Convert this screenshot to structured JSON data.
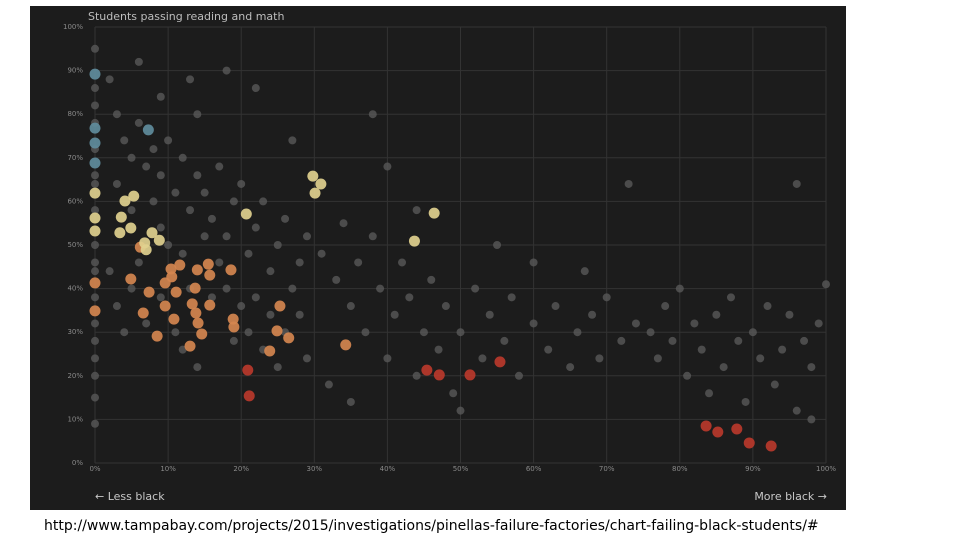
{
  "chart_data": {
    "type": "scatter",
    "title": "Students passing reading and math",
    "x_label_left": "← Less black",
    "x_label_right": "More black →",
    "xlim": [
      0,
      100
    ],
    "ylim": [
      0,
      100
    ],
    "grid": true,
    "xticks": [
      {
        "value": 0,
        "label": "0%"
      },
      {
        "value": 10,
        "label": "10%"
      },
      {
        "value": 20,
        "label": "20%"
      },
      {
        "value": 30,
        "label": "30%"
      },
      {
        "value": 40,
        "label": "40%"
      },
      {
        "value": 50,
        "label": "50%"
      },
      {
        "value": 60,
        "label": "60%"
      },
      {
        "value": 70,
        "label": "70%"
      },
      {
        "value": 80,
        "label": "80%"
      },
      {
        "value": 90,
        "label": "90%"
      },
      {
        "value": 100,
        "label": "100%"
      }
    ],
    "yticks": [
      {
        "value": 0,
        "label": "0%"
      },
      {
        "value": 10,
        "label": "10%"
      },
      {
        "value": 20,
        "label": "20%"
      },
      {
        "value": 30,
        "label": "30%"
      },
      {
        "value": 40,
        "label": "40%"
      },
      {
        "value": 50,
        "label": "50%"
      },
      {
        "value": 60,
        "label": "60%"
      },
      {
        "value": 70,
        "label": "70%"
      },
      {
        "value": 80,
        "label": "80%"
      },
      {
        "value": 90,
        "label": "90%"
      },
      {
        "value": 100,
        "label": "100%"
      }
    ],
    "series": [
      {
        "color": "#5c5c5c",
        "x": [
          0,
          0,
          0,
          0,
          0,
          0,
          0,
          0,
          0,
          0,
          0,
          0,
          0,
          0,
          0,
          0,
          0,
          0,
          2,
          3,
          4,
          5,
          6,
          7,
          8,
          9,
          10,
          11,
          12,
          13,
          14,
          15,
          16,
          17,
          18,
          19,
          20,
          21,
          22,
          23,
          24,
          25,
          26,
          27,
          28,
          29,
          3,
          5,
          6,
          8,
          9,
          10,
          12,
          13,
          15,
          16,
          17,
          18,
          19,
          20,
          21,
          22,
          23,
          24,
          25,
          26,
          28,
          29,
          5,
          7,
          9,
          11,
          12,
          14,
          3,
          4,
          2,
          6,
          9,
          14,
          18,
          22,
          13,
          38,
          27,
          31,
          33,
          34,
          35,
          36,
          37,
          38,
          39,
          40,
          41,
          42,
          43,
          44,
          45,
          46,
          47,
          48,
          49,
          50,
          52,
          53,
          54,
          56,
          57,
          58,
          60,
          62,
          63,
          65,
          66,
          68,
          69,
          70,
          72,
          73,
          74,
          76,
          77,
          78,
          79,
          80,
          81,
          82,
          83,
          84,
          85,
          86,
          87,
          88,
          89,
          90,
          91,
          92,
          93,
          94,
          95,
          96,
          97,
          98,
          99,
          100,
          96,
          98,
          44,
          50,
          60,
          35,
          67,
          40,
          32,
          55
        ],
        "values": [
          95,
          86,
          82,
          78,
          72,
          66,
          64,
          58,
          50,
          46,
          44,
          38,
          32,
          28,
          24,
          20,
          15,
          9,
          88,
          80,
          74,
          70,
          78,
          68,
          72,
          66,
          74,
          62,
          70,
          58,
          66,
          62,
          56,
          68,
          52,
          60,
          64,
          48,
          54,
          60,
          44,
          50,
          56,
          40,
          46,
          52,
          64,
          58,
          46,
          60,
          54,
          50,
          48,
          40,
          52,
          38,
          46,
          40,
          28,
          36,
          30,
          38,
          26,
          34,
          22,
          30,
          34,
          24,
          40,
          32,
          38,
          30,
          26,
          22,
          36,
          30,
          44,
          92,
          84,
          80,
          90,
          86,
          88,
          80,
          74,
          48,
          42,
          55,
          36,
          46,
          30,
          52,
          40,
          24,
          34,
          46,
          38,
          20,
          30,
          42,
          26,
          36,
          16,
          30,
          40,
          24,
          34,
          28,
          38,
          20,
          32,
          26,
          36,
          22,
          30,
          34,
          24,
          38,
          28,
          64,
          32,
          30,
          24,
          36,
          28,
          40,
          20,
          32,
          26,
          16,
          34,
          22,
          38,
          28,
          14,
          30,
          24,
          36,
          18,
          26,
          34,
          12,
          28,
          22,
          32,
          41,
          64,
          10,
          58,
          12,
          46,
          14,
          44,
          68,
          18,
          50
        ]
      },
      {
        "color": "#b9382b",
        "x": [
          20.9,
          21.1,
          45.4,
          47.1,
          51.3,
          55.4,
          83.6,
          85.2,
          87.8,
          89.5,
          92.5
        ],
        "values": [
          21.3,
          15.4,
          21.3,
          20.2,
          20.2,
          23.2,
          8.5,
          7.1,
          7.8,
          4.6,
          3.9
        ]
      },
      {
        "color": "#d4864f",
        "x": [
          23.9,
          34.3,
          26.5,
          24.9,
          25.3,
          19,
          18.9,
          18.6,
          15.7,
          14.6,
          14.1,
          13.8,
          13,
          13.3,
          13.7,
          15.7,
          15.5,
          14,
          11.1,
          10.5,
          11.6,
          9.6,
          10.8,
          8.5,
          6.6,
          7.4,
          4.9,
          6.2,
          10.4,
          9.6,
          0,
          0
        ],
        "values": [
          25.7,
          27.1,
          28.7,
          30.3,
          36,
          31.2,
          33,
          44.3,
          36.2,
          29.6,
          32.1,
          34.4,
          26.8,
          36.5,
          40.1,
          43.1,
          45.6,
          44.3,
          39.2,
          42.7,
          45.4,
          36,
          33,
          29.1,
          34.4,
          39.2,
          42.2,
          49.5,
          44.5,
          41.3,
          34.9,
          41.3
        ]
      },
      {
        "color": "#dfd08e",
        "x": [
          20.7,
          29.8,
          30.9,
          30.1,
          43.7,
          46.4,
          3.6,
          4.1,
          5.3,
          4.9,
          3.4,
          6.8,
          7,
          7.8,
          8.8,
          0,
          0,
          0
        ],
        "values": [
          57.1,
          65.8,
          64,
          61.9,
          50.9,
          57.3,
          56.4,
          60.1,
          61.2,
          53.9,
          52.8,
          50.5,
          48.9,
          52.8,
          51.1,
          53.2,
          56.2,
          61.9
        ]
      },
      {
        "color": "#5f8c9c",
        "x": [
          0,
          7.3,
          0,
          0,
          0
        ],
        "values": [
          89.2,
          76.4,
          76.8,
          68.8,
          73.4
        ]
      }
    ]
  },
  "caption": "http://www.tampabay.com/projects/2015/investigations/pinellas-failure-factories/chart-failing-black-students/#"
}
